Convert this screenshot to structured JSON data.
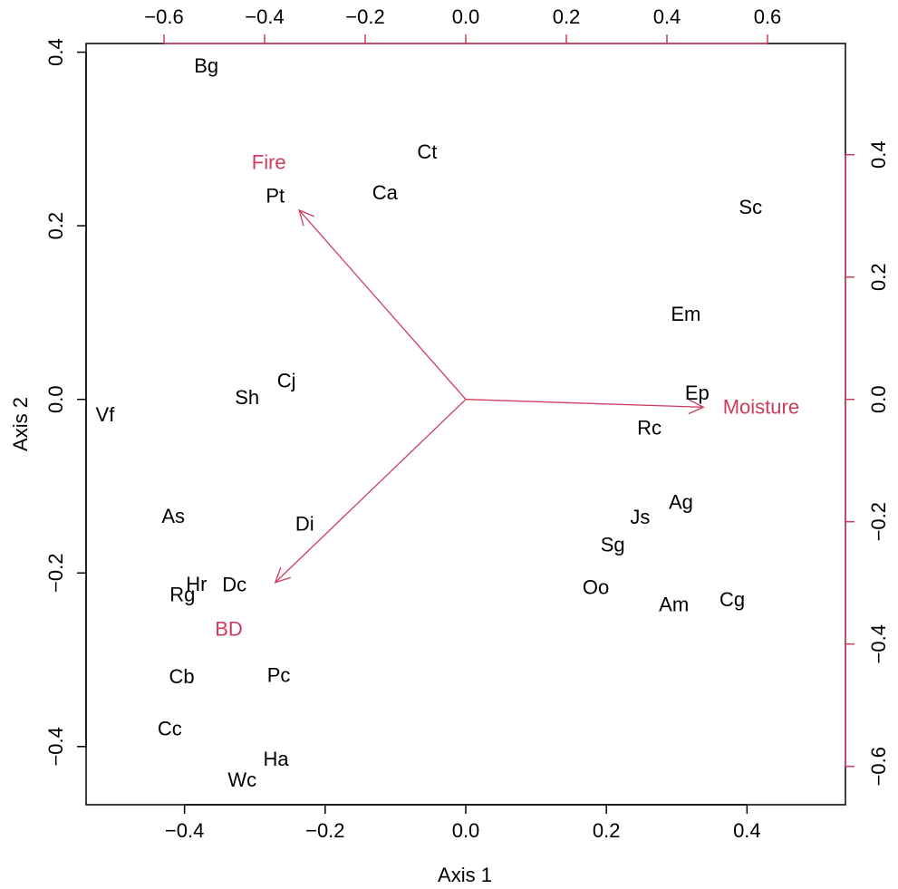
{
  "chart_data": {
    "type": "scatter",
    "subtype": "biplot",
    "title": "",
    "xlabel": "Axis 1",
    "ylabel": "Axis 2",
    "xlim": [
      -0.54,
      0.54
    ],
    "ylim": [
      -0.467,
      0.41
    ],
    "x_ticks": [
      "−0.4",
      "−0.2",
      "0.0",
      "0.2",
      "0.4"
    ],
    "y_ticks": [
      "−0.4",
      "−0.2",
      "0.0",
      "0.2",
      "0.4"
    ],
    "top_ticks": [
      "−0.6",
      "−0.4",
      "−0.2",
      "0.0",
      "0.2",
      "0.4",
      "0.6"
    ],
    "right_ticks": [
      "−0.6",
      "−0.4",
      "−0.2",
      "0.0",
      "0.2",
      "0.4"
    ],
    "grid": false,
    "point_color": "#000000",
    "vector_color": "#CE3B5E",
    "points": [
      {
        "label": "Bg",
        "x": -0.369,
        "y": 0.385
      },
      {
        "label": "Ct",
        "x": -0.055,
        "y": 0.286
      },
      {
        "label": "Ca",
        "x": -0.115,
        "y": 0.239
      },
      {
        "label": "Pt",
        "x": -0.271,
        "y": 0.235
      },
      {
        "label": "Sc",
        "x": 0.405,
        "y": 0.222
      },
      {
        "label": "Em",
        "x": 0.313,
        "y": 0.099
      },
      {
        "label": "Cj",
        "x": -0.255,
        "y": 0.022
      },
      {
        "label": "Ep",
        "x": 0.329,
        "y": 0.008
      },
      {
        "label": "Sh",
        "x": -0.311,
        "y": 0.003
      },
      {
        "label": "Vf",
        "x": -0.513,
        "y": -0.017
      },
      {
        "label": "Rc",
        "x": 0.261,
        "y": -0.032
      },
      {
        "label": "Ag",
        "x": 0.306,
        "y": -0.118
      },
      {
        "label": "Js",
        "x": 0.248,
        "y": -0.135
      },
      {
        "label": "As",
        "x": -0.416,
        "y": -0.134
      },
      {
        "label": "Di",
        "x": -0.229,
        "y": -0.143
      },
      {
        "label": "Sg",
        "x": 0.209,
        "y": -0.167
      },
      {
        "label": "Hr",
        "x": -0.383,
        "y": -0.212
      },
      {
        "label": "Dc",
        "x": -0.329,
        "y": -0.213
      },
      {
        "label": "Oo",
        "x": 0.185,
        "y": -0.216
      },
      {
        "label": "Rg",
        "x": -0.403,
        "y": -0.224
      },
      {
        "label": "Cg",
        "x": 0.379,
        "y": -0.23
      },
      {
        "label": "Am",
        "x": 0.296,
        "y": -0.236
      },
      {
        "label": "Cb",
        "x": -0.404,
        "y": -0.319
      },
      {
        "label": "Pc",
        "x": -0.266,
        "y": -0.317
      },
      {
        "label": "Cc",
        "x": -0.421,
        "y": -0.379
      },
      {
        "label": "Ha",
        "x": -0.27,
        "y": -0.414
      },
      {
        "label": "Wc",
        "x": -0.318,
        "y": -0.438
      }
    ],
    "vectors": [
      {
        "name": "Fire",
        "x": -0.237,
        "y": 0.218,
        "label_x": -0.28,
        "label_y": 0.274
      },
      {
        "name": "Moisture",
        "x": 0.338,
        "y": -0.009,
        "label_x": 0.42,
        "label_y": -0.008
      },
      {
        "name": "BD",
        "x": -0.271,
        "y": -0.211,
        "label_x": -0.337,
        "label_y": -0.264
      }
    ]
  }
}
